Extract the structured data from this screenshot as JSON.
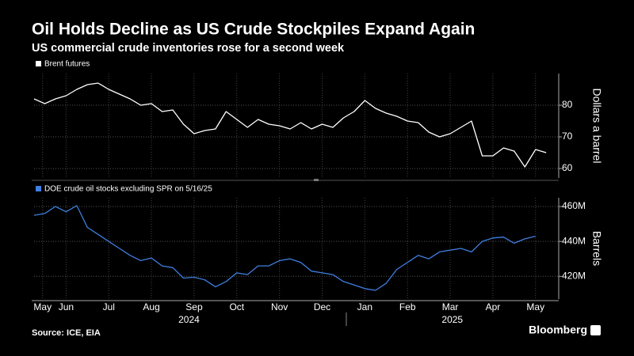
{
  "chart_data": [
    {
      "type": "line",
      "title": "Oil Holds Decline as US Crude Stockpiles Expand Again",
      "subtitle": "US commercial crude inventories rose for a second week",
      "y_label": "Dollars a barrel",
      "ylim": [
        57,
        90
      ],
      "yticks": [
        60,
        70,
        80
      ],
      "xlim": [
        0.75,
        12.95
      ],
      "x": [
        0.75,
        1.0,
        1.25,
        1.5,
        1.75,
        2.0,
        2.25,
        2.5,
        2.75,
        3.0,
        3.25,
        3.5,
        3.75,
        4.0,
        4.25,
        4.5,
        4.75,
        5.0,
        5.25,
        5.5,
        5.75,
        6.0,
        6.25,
        6.5,
        6.75,
        7.0,
        7.25,
        7.5,
        7.75,
        8.0,
        8.25,
        8.5,
        8.75,
        9.0,
        9.25,
        9.5,
        9.75,
        10.0,
        10.25,
        10.5,
        10.75,
        11.0,
        11.25,
        11.5,
        11.75,
        12.0,
        12.25,
        12.5,
        12.75
      ],
      "series": [
        {
          "name": "Brent futures",
          "color": "#ffffff",
          "values": [
            82,
            80.5,
            82,
            83,
            85,
            86.5,
            87,
            85,
            83.5,
            82,
            80,
            80.5,
            78,
            78.5,
            74,
            71,
            72,
            72.5,
            78,
            75.5,
            73,
            75.5,
            74,
            73.5,
            72.5,
            74.5,
            72.5,
            74,
            73,
            76,
            78,
            81.5,
            79,
            77.5,
            76.5,
            75,
            74.5,
            71.5,
            70,
            71,
            73,
            75,
            64,
            64,
            66.5,
            65.5,
            60.5,
            66,
            65
          ]
        }
      ],
      "grid": true
    },
    {
      "type": "line",
      "y_label": "Barrels",
      "ylim": [
        407,
        465
      ],
      "yticks": [
        {
          "value": 420,
          "label": "420M"
        },
        {
          "value": 440,
          "label": "440M"
        },
        {
          "value": 460,
          "label": "460M"
        }
      ],
      "xlim": [
        0.75,
        12.95
      ],
      "xticks": [
        {
          "value": 0.95,
          "label": "May"
        },
        {
          "value": 1.5,
          "label": "Jun"
        },
        {
          "value": 2.5,
          "label": "Jul"
        },
        {
          "value": 3.5,
          "label": "Aug"
        },
        {
          "value": 4.5,
          "label": "Sep"
        },
        {
          "value": 5.5,
          "label": "Oct"
        },
        {
          "value": 6.5,
          "label": "Nov"
        },
        {
          "value": 7.5,
          "label": "Dec"
        },
        {
          "value": 8.5,
          "label": "Jan"
        },
        {
          "value": 9.5,
          "label": "Feb"
        },
        {
          "value": 10.5,
          "label": "Mar"
        },
        {
          "value": 11.5,
          "label": "Apr"
        },
        {
          "value": 12.5,
          "label": "May"
        }
      ],
      "year_labels": [
        {
          "value": 4.38,
          "label": "2024"
        },
        {
          "value": 10.55,
          "label": "2025"
        }
      ],
      "x": [
        0.75,
        1.0,
        1.25,
        1.5,
        1.75,
        2.0,
        2.25,
        2.5,
        2.75,
        3.0,
        3.25,
        3.5,
        3.75,
        4.0,
        4.25,
        4.5,
        4.75,
        5.0,
        5.25,
        5.5,
        5.75,
        6.0,
        6.25,
        6.5,
        6.75,
        7.0,
        7.25,
        7.5,
        7.75,
        8.0,
        8.25,
        8.5,
        8.75,
        9.0,
        9.25,
        9.5,
        9.75,
        10.0,
        10.25,
        10.5,
        10.75,
        11.0,
        11.25,
        11.5,
        11.75,
        12.0,
        12.25,
        12.5
      ],
      "series": [
        {
          "name": "DOE crude oil stocks excluding SPR on 5/16/25",
          "color": "#3f7fe0",
          "values": [
            455,
            456,
            460,
            457,
            460.5,
            448,
            444,
            440,
            436,
            432,
            429,
            430.5,
            426,
            425,
            419,
            419.5,
            418,
            414,
            417,
            422,
            421,
            426,
            426,
            429,
            430,
            428,
            423,
            422,
            421,
            417,
            415,
            413,
            412,
            416,
            424,
            428,
            432,
            430,
            434,
            435,
            436,
            434,
            440,
            442,
            442.5,
            439,
            441.5,
            443
          ]
        }
      ],
      "grid": true
    }
  ],
  "source": "Source: ICE, EIA",
  "brand": "Bloomberg"
}
